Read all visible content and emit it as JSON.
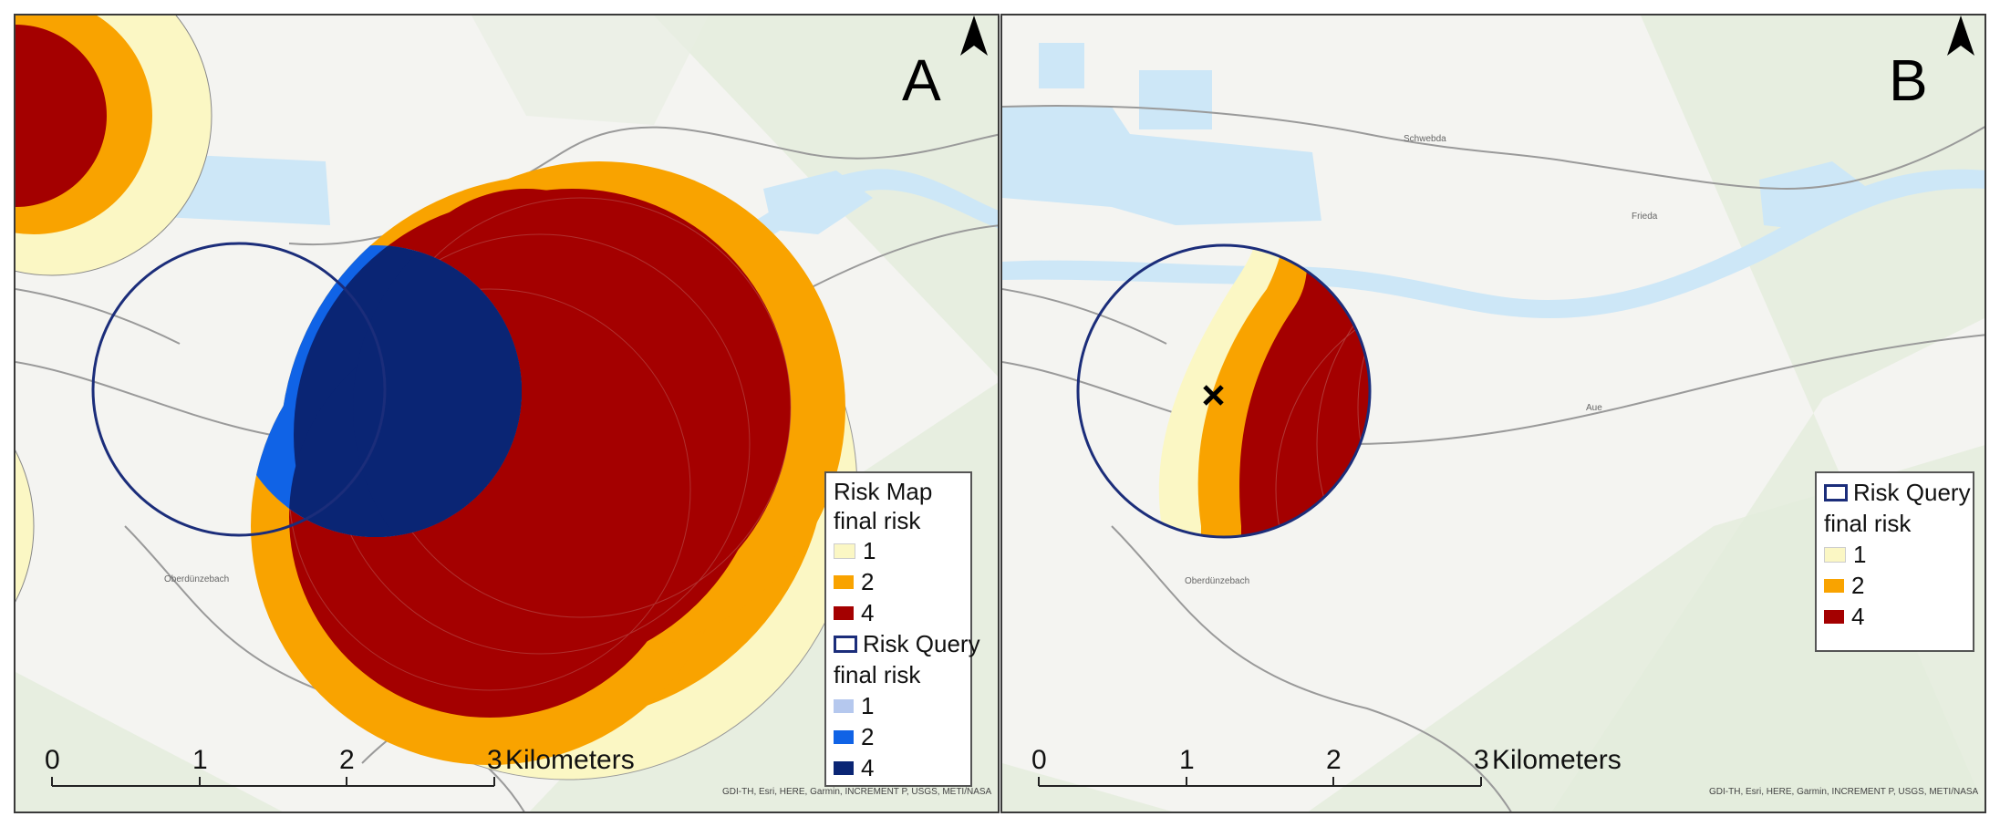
{
  "panels": [
    {
      "letter": "A",
      "north": "N",
      "legend": {
        "risk_map_title_1": "Risk Map",
        "risk_map_title_2": "final risk",
        "risk_map_items": [
          {
            "label": "1",
            "color": "#fbf7c4"
          },
          {
            "label": "2",
            "color": "#f9a300"
          },
          {
            "label": "4",
            "color": "#a40000"
          }
        ],
        "risk_query_title": "Risk Query",
        "risk_query_subtitle": "final risk",
        "risk_query_items": [
          {
            "label": "1",
            "color": "#b5c8ee"
          },
          {
            "label": "2",
            "color": "#1063e6"
          },
          {
            "label": "4",
            "color": "#0a2574"
          }
        ]
      },
      "scalebar": {
        "ticks": [
          "0",
          "1",
          "2",
          "3"
        ],
        "unit": "Kilometers"
      },
      "attribution": "GDI-TH, Esri, HERE, Garmin, INCREMENT P, USGS, METI/NASA"
    },
    {
      "letter": "B",
      "north": "N",
      "legend": {
        "risk_query_title": "Risk Query",
        "risk_query_subtitle": "final risk",
        "items": [
          {
            "label": "1",
            "color": "#fbf7c4"
          },
          {
            "label": "2",
            "color": "#f9a300"
          },
          {
            "label": "4",
            "color": "#a40000"
          }
        ]
      },
      "scalebar": {
        "ticks": [
          "0",
          "1",
          "2",
          "3"
        ],
        "unit": "Kilometers"
      },
      "attribution": "GDI-TH, Esri, HERE, Garmin, INCREMENT P, USGS, METI/NASA"
    }
  ],
  "map_labels": {
    "place_1": "Schwebda",
    "place_2": "Frieda",
    "place_3": "Aue",
    "place_4": "Oberdünzebach",
    "place_5": "Oberdünzebach"
  },
  "colors": {
    "water": "#cde7f7",
    "query_outline": "#1b2d7a",
    "road": "#8f8f8f"
  }
}
